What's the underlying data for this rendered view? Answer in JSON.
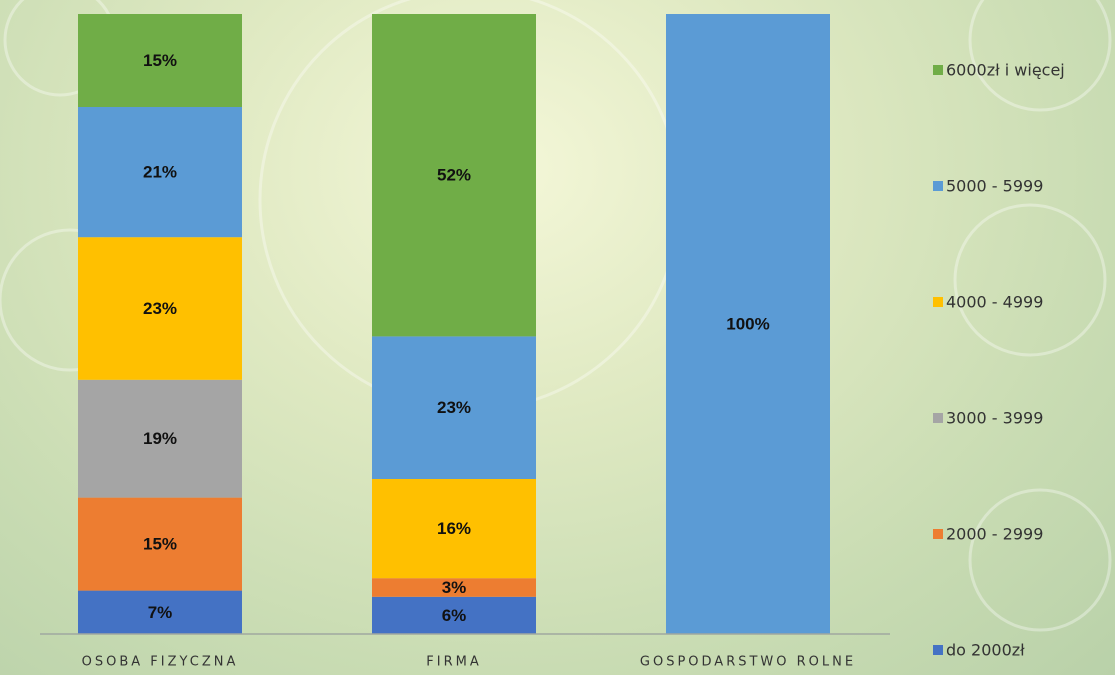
{
  "chart_data": {
    "type": "stacked-bar",
    "categories": [
      "OSOBA FIZYCZNA",
      "FIRMA",
      "GOSPODARSTWO ROLNE"
    ],
    "ylim": [
      0,
      100
    ],
    "series": [
      {
        "name": "do 2000zł",
        "color": "#4472c4",
        "values": [
          7,
          6,
          0
        ],
        "value_labels": [
          "7%",
          "6%",
          null
        ]
      },
      {
        "name": "2000 - 2999",
        "color": "#ed7d31",
        "values": [
          15,
          3,
          0
        ],
        "value_labels": [
          "15%",
          "3%",
          null
        ]
      },
      {
        "name": "3000 - 3999",
        "color": "#a5a5a5",
        "values": [
          19,
          0,
          0
        ],
        "value_labels": [
          "19%",
          null,
          null
        ]
      },
      {
        "name": "4000 - 4999",
        "color": "#ffc000",
        "values": [
          23,
          16,
          0
        ],
        "value_labels": [
          "23%",
          "16%",
          null
        ]
      },
      {
        "name": "5000 - 5999",
        "color": "#5b9bd5",
        "values": [
          21,
          23,
          100
        ],
        "value_labels": [
          "21%",
          "23%",
          "100%"
        ]
      },
      {
        "name": "6000zł i więcej",
        "color": "#70ad47",
        "values": [
          15,
          52,
          0
        ],
        "value_labels": [
          "15%",
          "52%",
          null
        ]
      }
    ],
    "legend": "right"
  }
}
